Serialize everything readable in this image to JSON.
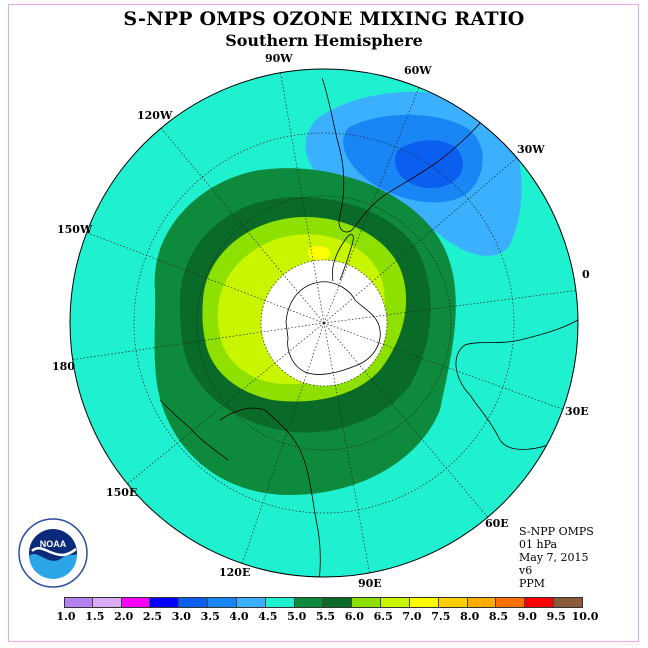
{
  "title": "S-NPP OMPS OZONE MIXING RATIO",
  "subtitle": "Southern Hemisphere",
  "longitude_labels": [
    "90W",
    "60W",
    "30W",
    "0",
    "30E",
    "60E",
    "90E",
    "120E",
    "150E",
    "180",
    "150W",
    "120W"
  ],
  "info": {
    "line1": "S-NPP OMPS",
    "line2": "01 hPa",
    "line3": "May 7, 2015",
    "line4": "v6",
    "line5": "PPM"
  },
  "logo_text": "NOAA",
  "colorbar": {
    "labels": [
      "1.0",
      "1.5",
      "2.0",
      "2.5",
      "3.0",
      "3.5",
      "4.0",
      "4.5",
      "5.0",
      "5.5",
      "6.0",
      "6.5",
      "7.0",
      "7.5",
      "8.0",
      "8.5",
      "9.0",
      "9.5",
      "10.0"
    ],
    "colors": [
      "#b580f0",
      "#d9aaf5",
      "#ff00ff",
      "#0000ff",
      "#0a5ff0",
      "#1a85f5",
      "#3ab0ff",
      "#1ef0d0",
      "#0e8a3c",
      "#0a6a28",
      "#8ee000",
      "#c8f500",
      "#ffff00",
      "#ffd000",
      "#ffaa00",
      "#ff7000",
      "#ff0000",
      "#8b5a3a"
    ]
  },
  "colors": {
    "ocean": "#1ef0d0",
    "polar_center": "#ffffff"
  }
}
